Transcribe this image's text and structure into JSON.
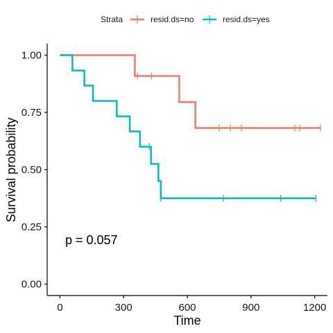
{
  "chart_data": {
    "type": "line",
    "subtype": "kaplan-meier survival curve",
    "title": "",
    "xlabel": "Time",
    "ylabel": "Survival probability",
    "xlim": [
      -60,
      1260
    ],
    "ylim": [
      -0.05,
      1.05
    ],
    "x_ticks": [
      0,
      300,
      600,
      900,
      1200
    ],
    "x_tick_labels": [
      "0",
      "300",
      "600",
      "900",
      "1200"
    ],
    "y_ticks": [
      0,
      0.25,
      0.5,
      0.75,
      1.0
    ],
    "y_tick_labels": [
      "0.00",
      "0.25",
      "0.50",
      "0.75",
      "1.00"
    ],
    "grid": false,
    "legend": {
      "title": "Strata",
      "position": "top"
    },
    "annotation": "p = 0.057",
    "series": [
      {
        "name": "resid.ds=no",
        "color": "#F8766D",
        "steps": [
          [
            0,
            1.0
          ],
          [
            353,
            0.909
          ],
          [
            562,
            0.795
          ],
          [
            638,
            0.682
          ],
          [
            1227,
            0.682
          ]
        ],
        "censored": [
          [
            365,
            0.909
          ],
          [
            431,
            0.909
          ],
          [
            750,
            0.682
          ],
          [
            803,
            0.682
          ],
          [
            855,
            0.682
          ],
          [
            1106,
            0.682
          ],
          [
            1129,
            0.682
          ],
          [
            1227,
            0.682
          ]
        ]
      },
      {
        "name": "resid.ds=yes",
        "color": "#00BFC4",
        "steps": [
          [
            0,
            1.0
          ],
          [
            59,
            0.933
          ],
          [
            115,
            0.867
          ],
          [
            156,
            0.8
          ],
          [
            268,
            0.733
          ],
          [
            329,
            0.667
          ],
          [
            377,
            0.6
          ],
          [
            429,
            0.525
          ],
          [
            464,
            0.45
          ],
          [
            475,
            0.375
          ],
          [
            1206,
            0.375
          ]
        ],
        "censored": [
          [
            421,
            0.6
          ],
          [
            475,
            0.375
          ],
          [
            770,
            0.375
          ],
          [
            1040,
            0.375
          ],
          [
            1206,
            0.375
          ]
        ]
      }
    ]
  }
}
